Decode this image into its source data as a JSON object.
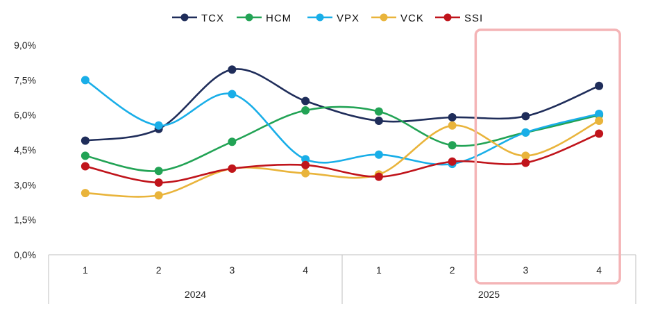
{
  "chart_data": {
    "type": "line",
    "smooth": true,
    "title": "",
    "xlabel": "",
    "ylabel": "",
    "ylim": [
      0,
      9
    ],
    "yticks": [
      0,
      1.5,
      3,
      4.5,
      6,
      7.5,
      9
    ],
    "ytick_labels": [
      "0,0%",
      "1,5%",
      "3,0%",
      "4,5%",
      "6,0%",
      "7,5%",
      "9,0%"
    ],
    "categories": [
      "1",
      "2",
      "3",
      "4",
      "1",
      "2",
      "3",
      "4"
    ],
    "groups": [
      {
        "label": "2024",
        "count": 4
      },
      {
        "label": "2025",
        "count": 4
      }
    ],
    "legend_position": "top",
    "series": [
      {
        "name": "TCX",
        "color": "#1f2d5a",
        "values": [
          4.9,
          5.4,
          7.95,
          6.6,
          5.75,
          5.9,
          5.95,
          7.25
        ]
      },
      {
        "name": "HCM",
        "color": "#22a355",
        "values": [
          4.25,
          3.6,
          4.85,
          6.2,
          6.15,
          4.7,
          5.25,
          6.0
        ]
      },
      {
        "name": "VPX",
        "color": "#19aee8",
        "values": [
          7.5,
          5.55,
          6.9,
          4.1,
          4.3,
          3.9,
          5.25,
          6.05
        ]
      },
      {
        "name": "VCK",
        "color": "#e9b43b",
        "values": [
          2.65,
          2.55,
          3.7,
          3.5,
          3.45,
          5.55,
          4.25,
          5.75
        ]
      },
      {
        "name": "SSI",
        "color": "#c0141b",
        "values": [
          3.8,
          3.1,
          3.7,
          3.85,
          3.35,
          4.0,
          3.95,
          5.2
        ]
      }
    ],
    "highlight": {
      "group": "2025",
      "categories": [
        "3",
        "4"
      ],
      "color": "#f4b4b6"
    }
  }
}
